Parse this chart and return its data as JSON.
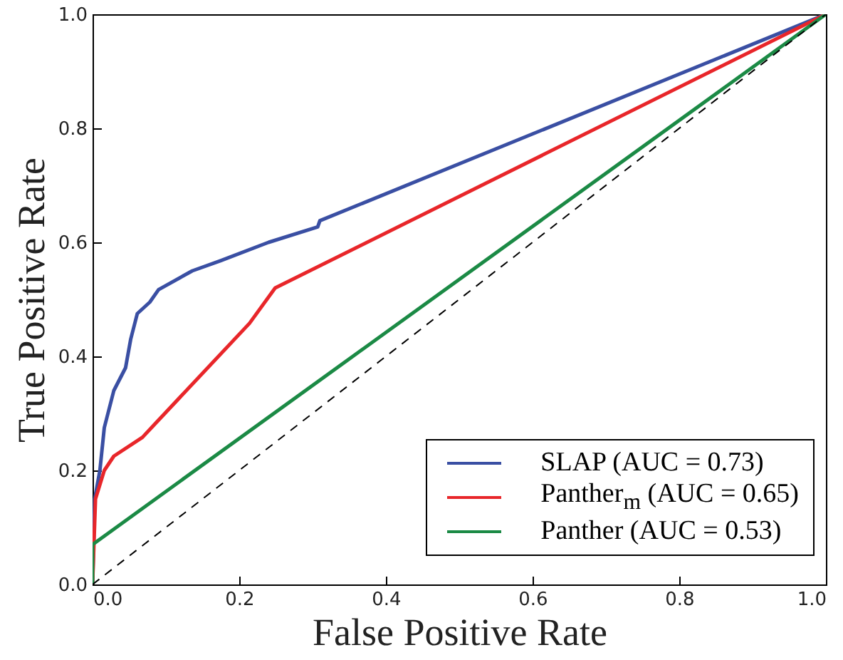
{
  "chart_data": {
    "type": "line",
    "xlabel": "False Positive Rate",
    "ylabel": "True Positive Rate",
    "xlim": [
      0,
      1
    ],
    "ylim": [
      0,
      1
    ],
    "xticks": [
      {
        "value": 0,
        "label": "0.0"
      },
      {
        "value": 0.2,
        "label": "0.2"
      },
      {
        "value": 0.4,
        "label": "0.4"
      },
      {
        "value": 0.6,
        "label": "0.6"
      },
      {
        "value": 0.8,
        "label": "0.8"
      },
      {
        "value": 1,
        "label": "1.0"
      }
    ],
    "yticks": [
      {
        "value": 0,
        "label": "0.0"
      },
      {
        "value": 0.2,
        "label": "0.2"
      },
      {
        "value": 0.4,
        "label": "0.4"
      },
      {
        "value": 0.6,
        "label": "0.6"
      },
      {
        "value": 0.8,
        "label": "0.8"
      },
      {
        "value": 1,
        "label": "1.0"
      }
    ],
    "grid": false,
    "legend": "bottom right",
    "marker": "none",
    "line_style": "solid",
    "series": [
      {
        "name": "SLAP (AUC = 0.73)",
        "color": "#3a4fa3",
        "x": [
          0,
          0.003,
          0.01,
          0.016,
          0.029,
          0.045,
          0.052,
          0.061,
          0.078,
          0.09,
          0.136,
          0.175,
          0.24,
          0.307,
          0.31,
          1
        ],
        "values": [
          0,
          0.15,
          0.2,
          0.275,
          0.34,
          0.38,
          0.43,
          0.475,
          0.495,
          0.517,
          0.55,
          0.568,
          0.6,
          0.627,
          0.638,
          1
        ]
      },
      {
        "name": "Panther$_{m}$ (AUC = 0.65)",
        "color": "#e8262a",
        "x": [
          0,
          0.004,
          0.016,
          0.029,
          0.068,
          0.084,
          0.214,
          0.249,
          1
        ],
        "values": [
          0,
          0.15,
          0.2,
          0.225,
          0.258,
          0.28,
          0.458,
          0.52,
          1
        ]
      },
      {
        "name": "Panther (AUC = 0.53)",
        "color": "#1b8a45",
        "x": [
          0,
          0,
          1
        ],
        "values": [
          0,
          0.07,
          1
        ]
      },
      {
        "color": "#000000",
        "line_style": "dashed",
        "x": [
          0,
          1
        ],
        "values": [
          0,
          1
        ]
      }
    ]
  }
}
